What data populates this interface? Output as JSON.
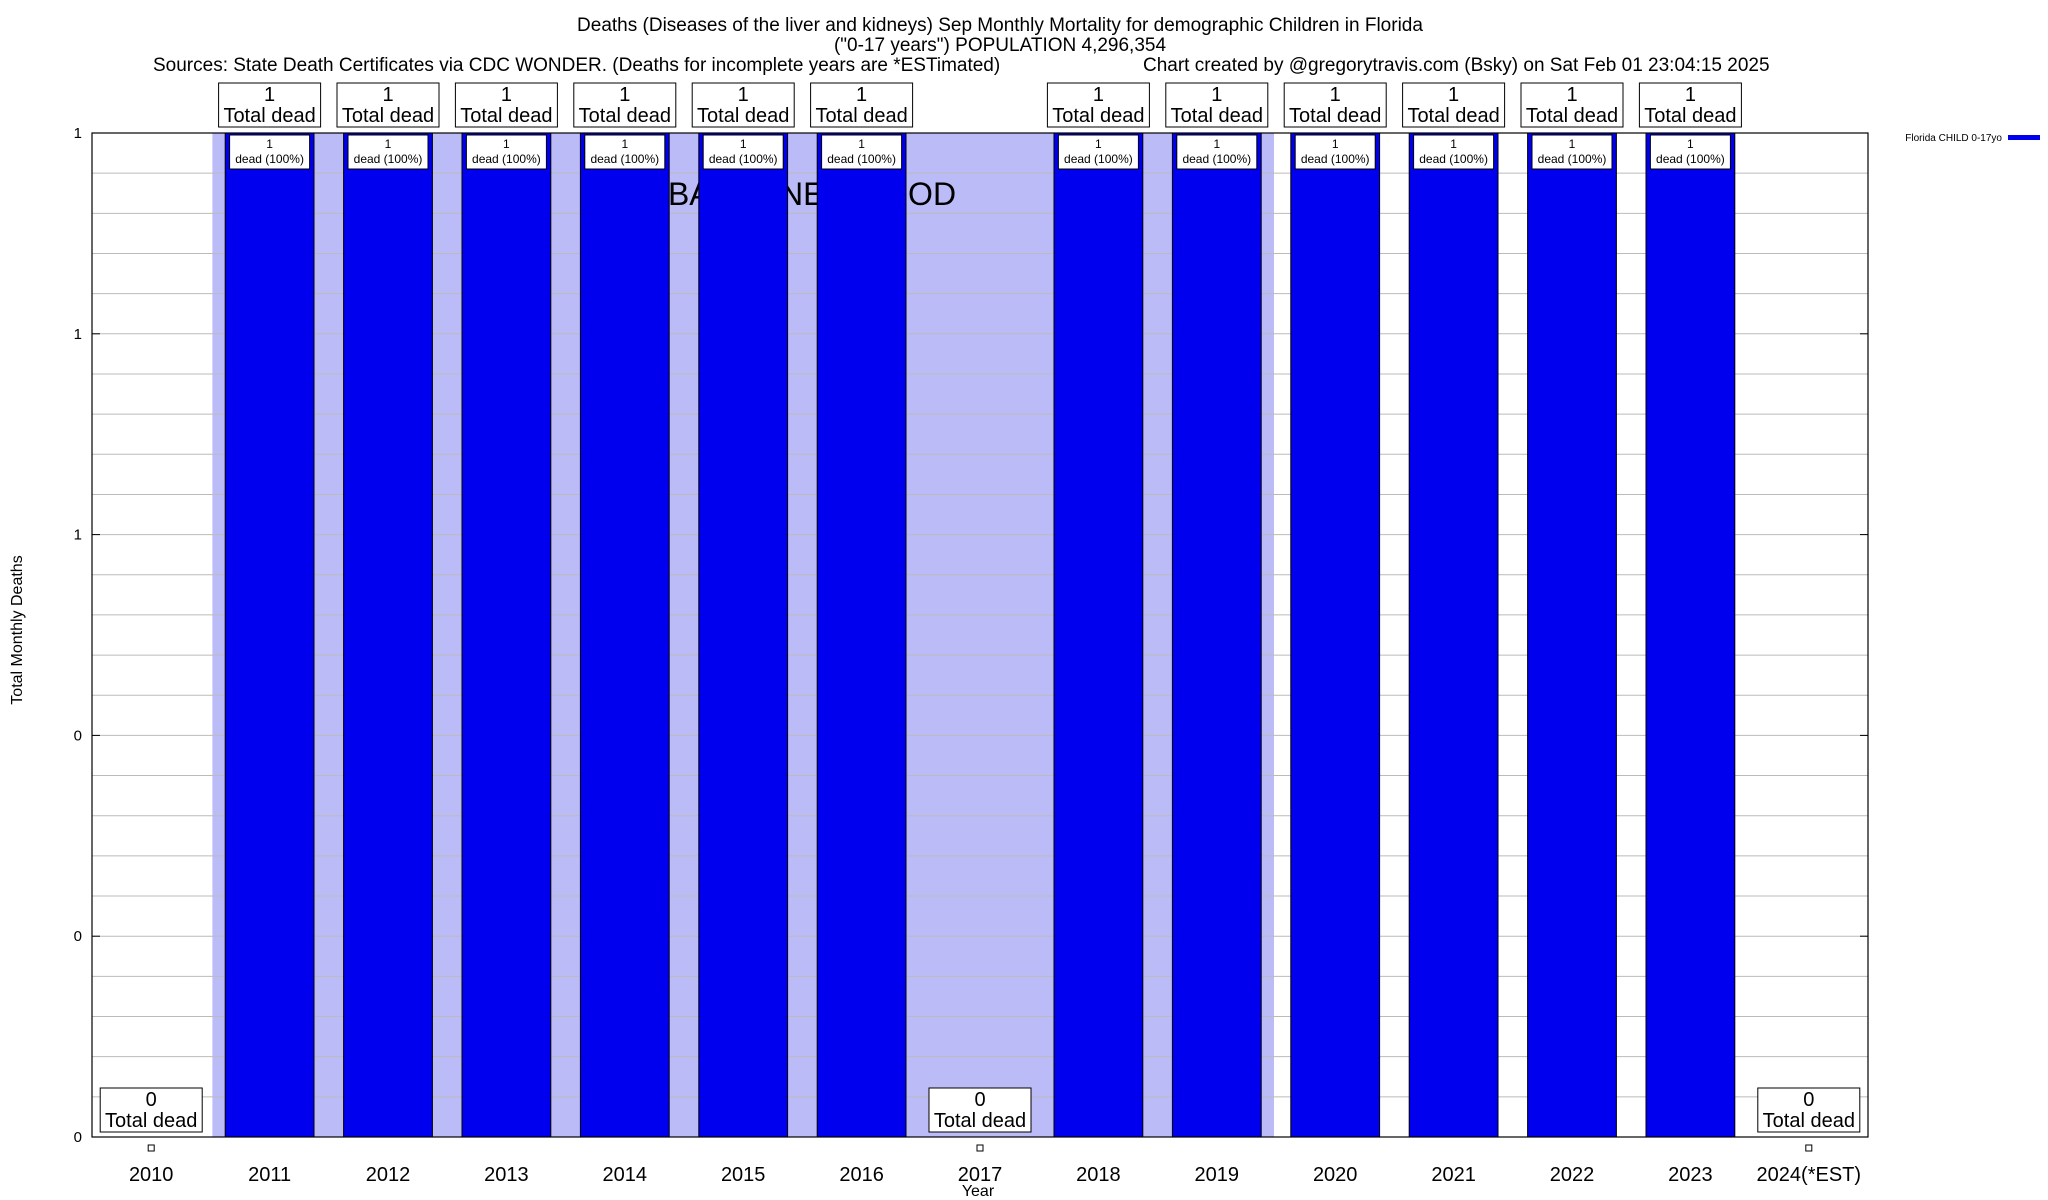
{
  "chart_data": {
    "type": "bar",
    "title_lines": [
      "Deaths (Diseases of the liver and kidneys) Sep Monthly Mortality for demographic Children in Florida",
      "(\"0-17 years\") POPULATION 4,296,354"
    ],
    "sources": "Sources: State Death Certificates via CDC WONDER. (Deaths for incomplete years are *ESTimated)",
    "credit": "Chart created by @gregorytravis.com (Bsky) on Sat Feb 01 23:04:15 2025",
    "xlabel": "Year",
    "ylabel": "Total Monthly Deaths",
    "ylim": [
      0,
      1
    ],
    "y_tick_labels": [
      "0",
      "0",
      "0",
      "1",
      "1",
      "1"
    ],
    "grid": true,
    "legend_position": "top-right",
    "baseline_label": "BASELINE PERIOD",
    "baseline_range": [
      "2011",
      "2019"
    ],
    "categories": [
      "2010",
      "2011",
      "2012",
      "2013",
      "2014",
      "2015",
      "2016",
      "2017",
      "2018",
      "2019",
      "2020",
      "2021",
      "2022",
      "2023",
      "2024(*EST)"
    ],
    "series": [
      {
        "name": "Florida CHILD 0-17yo",
        "color": "#0000ee",
        "values": [
          0,
          1,
          1,
          1,
          1,
          1,
          1,
          0,
          1,
          1,
          1,
          1,
          1,
          1,
          0
        ]
      }
    ],
    "total_labels": [
      {
        "value": "0",
        "text": "Total dead"
      },
      {
        "value": "1",
        "text": "Total dead"
      },
      {
        "value": "1",
        "text": "Total dead"
      },
      {
        "value": "1",
        "text": "Total dead"
      },
      {
        "value": "1",
        "text": "Total dead"
      },
      {
        "value": "1",
        "text": "Total dead"
      },
      {
        "value": "1",
        "text": "Total dead"
      },
      {
        "value": "0",
        "text": "Total dead"
      },
      {
        "value": "1",
        "text": "Total dead"
      },
      {
        "value": "1",
        "text": "Total dead"
      },
      {
        "value": "1",
        "text": "Total dead"
      },
      {
        "value": "1",
        "text": "Total dead"
      },
      {
        "value": "1",
        "text": "Total dead"
      },
      {
        "value": "1",
        "text": "Total dead"
      },
      {
        "value": "0",
        "text": "Total dead"
      }
    ],
    "bar_labels": [
      "",
      "1|dead (100%)",
      "1|dead (100%)",
      "1|dead (100%)",
      "1|dead (100%)",
      "1|dead (100%)",
      "1|dead (100%)",
      "",
      "1|dead (100%)",
      "1|dead (100%)",
      "1|dead (100%)",
      "1|dead (100%)",
      "1|dead (100%)",
      "1|dead (100%)",
      ""
    ],
    "colors": {
      "bar": "#0000ee",
      "baseline_shade": "#bbbbf8",
      "grid": "#bbbbbb"
    }
  }
}
